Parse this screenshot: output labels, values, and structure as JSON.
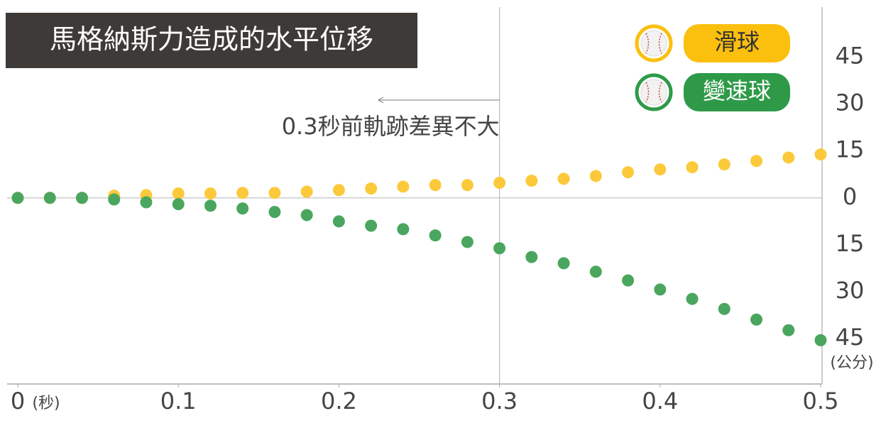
{
  "chart_data": {
    "type": "scatter",
    "title": "馬格納斯力造成的水平位移",
    "x_unit": "(秒)",
    "y_unit": "(公分)",
    "annotation": "0.3秒前軌跡差異不大",
    "vline": 0.3,
    "x": [
      0,
      0.02,
      0.04,
      0.06,
      0.08,
      0.1,
      0.12,
      0.14,
      0.16,
      0.18,
      0.2,
      0.22,
      0.24,
      0.26,
      0.28,
      0.3,
      0.32,
      0.34,
      0.36,
      0.38,
      0.4,
      0.42,
      0.44,
      0.46,
      0.48,
      0.5
    ],
    "series": [
      {
        "name": "滑球",
        "color": "#fcc93a",
        "legend_color": "#fbbf0e",
        "values": [
          0,
          0,
          0,
          0.7,
          0.9,
          1.4,
          1.4,
          1.6,
          1.6,
          2.0,
          2.5,
          3.0,
          3.6,
          4.1,
          4.1,
          4.8,
          5.5,
          6.1,
          7.0,
          8.2,
          9.1,
          9.8,
          10.7,
          11.8,
          12.9,
          13.9
        ]
      },
      {
        "name": "變速球",
        "color": "#4aa65e",
        "legend_color": "#2e9a48",
        "values": [
          0,
          0,
          0,
          -0.5,
          -1.4,
          -2.0,
          -2.5,
          -3.4,
          -4.5,
          -5.5,
          -7.5,
          -8.9,
          -10.0,
          -12.0,
          -14.1,
          -16.1,
          -18.9,
          -20.9,
          -23.6,
          -26.4,
          -29.3,
          -32.3,
          -35.5,
          -38.9,
          -42.3,
          -45.5
        ]
      }
    ],
    "xlim": [
      0,
      0.5
    ],
    "ylim": [
      -59.5,
      61
    ],
    "xticks": [
      0,
      0.1,
      0.2,
      0.3,
      0.4,
      0.5
    ],
    "yticks": [
      45,
      30,
      15,
      0,
      {
        "value": -15,
        "label": "15"
      },
      {
        "value": -30,
        "label": "30"
      },
      {
        "value": -45,
        "label": "45"
      }
    ],
    "legend": "top-right"
  }
}
